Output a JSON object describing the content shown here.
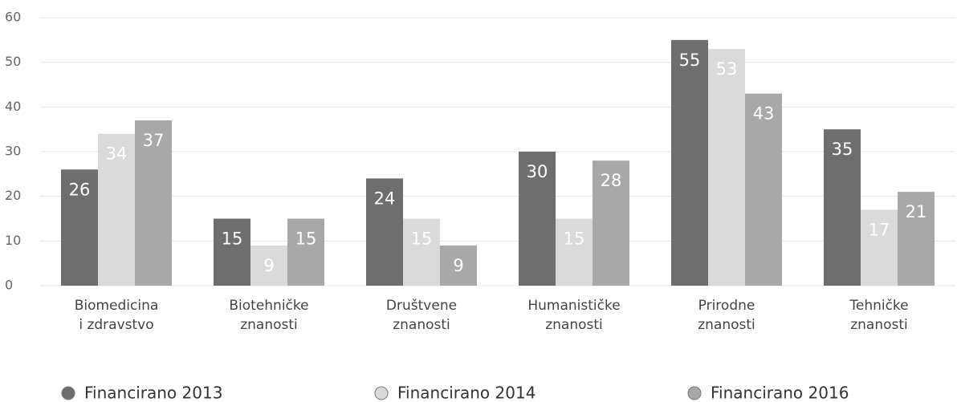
{
  "chart_data": {
    "type": "bar",
    "categories": [
      [
        "Biomedicina",
        "i zdravstvo"
      ],
      [
        "Biotehničke",
        "znanosti"
      ],
      [
        "Društvene",
        "znanosti"
      ],
      [
        "Humanističke",
        "znanosti"
      ],
      [
        "Prirodne",
        "znanosti"
      ],
      [
        "Tehničke",
        "znanosti"
      ]
    ],
    "series": [
      {
        "name": "Financirano 2013",
        "color": "#6e6e6e",
        "values": [
          26,
          15,
          24,
          30,
          55,
          35
        ]
      },
      {
        "name": "Financirano 2014",
        "color": "#dadada",
        "values": [
          34,
          9,
          15,
          15,
          53,
          17
        ]
      },
      {
        "name": "Financirano 2016",
        "color": "#a8a8a8",
        "values": [
          37,
          15,
          9,
          28,
          43,
          21
        ]
      }
    ],
    "ylim": [
      0,
      60
    ],
    "yticks": [
      0,
      10,
      20,
      30,
      40,
      50,
      60
    ],
    "grid": true
  }
}
